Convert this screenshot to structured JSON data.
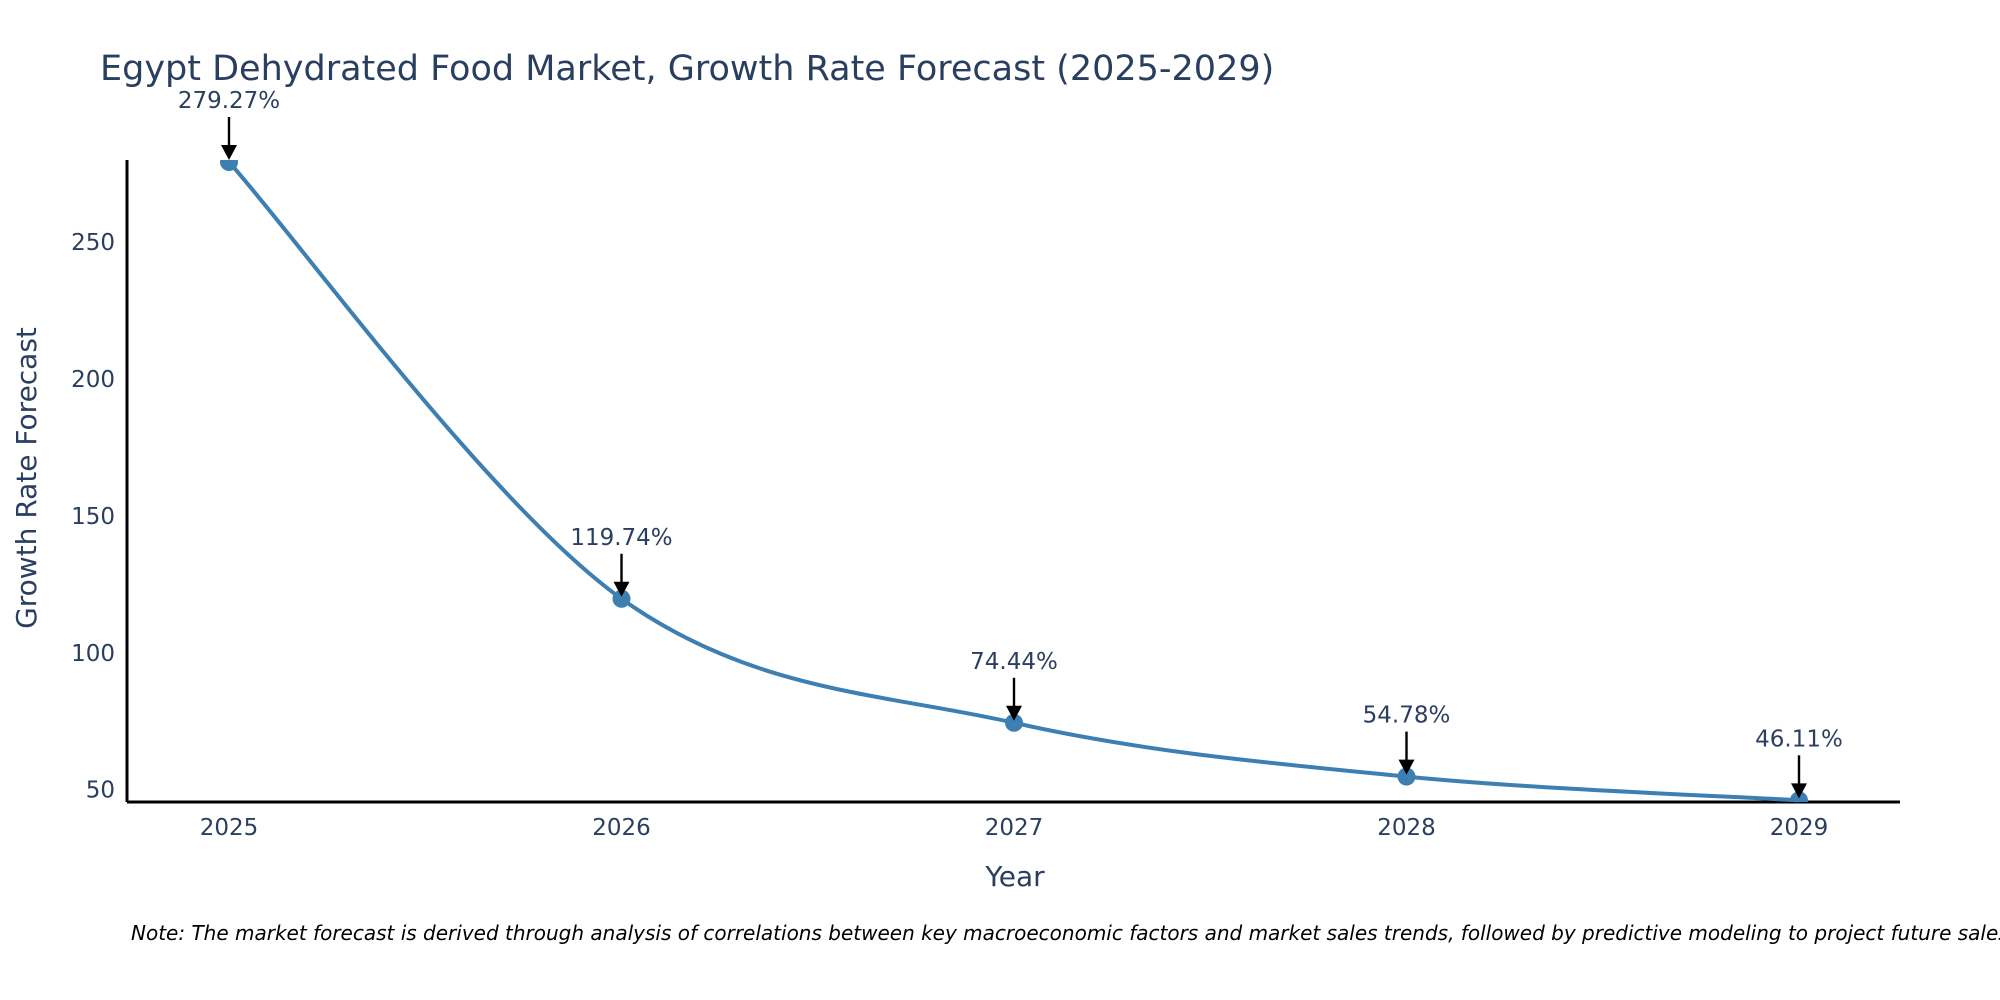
{
  "chart_data": {
    "type": "line",
    "title": "Egypt Dehydrated Food Market, Growth Rate Forecast (2025-2029)",
    "xlabel": "Year",
    "ylabel": "Growth Rate Forecast",
    "categories": [
      "2025",
      "2026",
      "2027",
      "2028",
      "2029"
    ],
    "series": [
      {
        "name": "Growth Rate Forecast",
        "values": [
          279.27,
          119.74,
          74.44,
          54.78,
          46.11
        ],
        "labels": [
          "279.27%",
          "119.74%",
          "74.44%",
          "54.78%",
          "46.11%"
        ],
        "color": "#3d7fb0"
      }
    ],
    "ylim": [
      45.5,
      280
    ],
    "yticks": [
      "50",
      "100",
      "150",
      "200",
      "250"
    ],
    "grid": false,
    "note": "Note: The market forecast is derived through analysis of correlations between key macroeconomic factors and market sales trends, followed by predictive modeling to project future sales."
  }
}
